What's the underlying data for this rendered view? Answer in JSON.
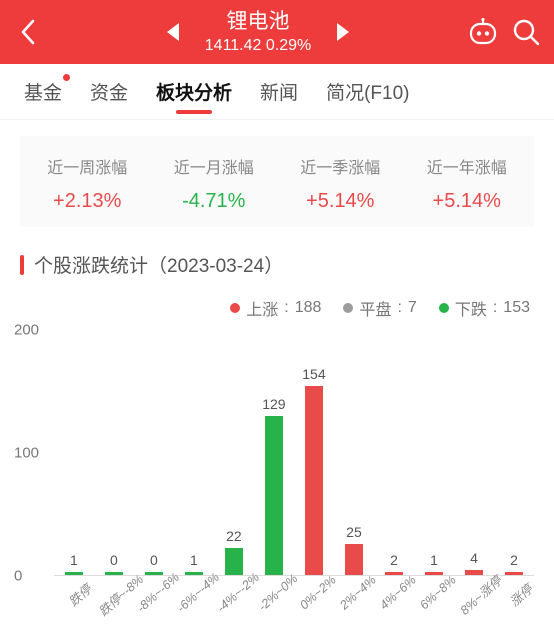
{
  "colors": {
    "header_bg": "#ee3b3b",
    "up": "#e94a4a",
    "down": "#27b34a",
    "flat": "#9d9d9d",
    "accent": "#ee3b3b",
    "tab_underline": "#ee3b3b",
    "red_dot": "#ee3b3b"
  },
  "header": {
    "title": "锂电池",
    "subtitle": "1411.42 0.29%"
  },
  "tabs": [
    {
      "id": "half",
      "label": "",
      "partial": true
    },
    {
      "id": "fund",
      "label": "基金",
      "dot": true
    },
    {
      "id": "money",
      "label": "资金"
    },
    {
      "id": "sector",
      "label": "板块分析",
      "active": true
    },
    {
      "id": "news",
      "label": "新闻"
    },
    {
      "id": "brief",
      "label": "简况(F10)"
    }
  ],
  "periods": [
    {
      "label": "近一周涨幅",
      "value": "+2.13%",
      "pos": true
    },
    {
      "label": "近一月涨幅",
      "value": "-4.71%",
      "pos": false
    },
    {
      "label": "近一季涨幅",
      "value": "+5.14%",
      "pos": true
    },
    {
      "label": "近一年涨幅",
      "value": "+5.14%",
      "pos": true
    }
  ],
  "section": {
    "title": "个股涨跌统计（2023-03-24）"
  },
  "legend": {
    "up": {
      "label": "上涨",
      "count": 188
    },
    "flat": {
      "label": "平盘",
      "count": 7
    },
    "down": {
      "label": "下跌",
      "count": 153
    }
  },
  "chart": {
    "ymax": 200,
    "yticks": [
      0,
      100,
      200
    ],
    "bars": [
      {
        "x": "跌停",
        "v": 1,
        "kind": "down"
      },
      {
        "x": "跌停~-8%",
        "v": 0,
        "kind": "down"
      },
      {
        "x": "-8%~-6%",
        "v": 0,
        "kind": "down"
      },
      {
        "x": "-6%~-4%",
        "v": 1,
        "kind": "down"
      },
      {
        "x": "-4%~-2%",
        "v": 22,
        "kind": "down"
      },
      {
        "x": "-2%~0%",
        "v": 129,
        "kind": "down"
      },
      {
        "x": "0%~2%",
        "v": 154,
        "kind": "up"
      },
      {
        "x": "2%~4%",
        "v": 25,
        "kind": "up"
      },
      {
        "x": "4%~6%",
        "v": 2,
        "kind": "up"
      },
      {
        "x": "6%~8%",
        "v": 1,
        "kind": "up"
      },
      {
        "x": "8%~涨停",
        "v": 4,
        "kind": "up"
      },
      {
        "x": "涨停",
        "v": 2,
        "kind": "up"
      }
    ]
  }
}
